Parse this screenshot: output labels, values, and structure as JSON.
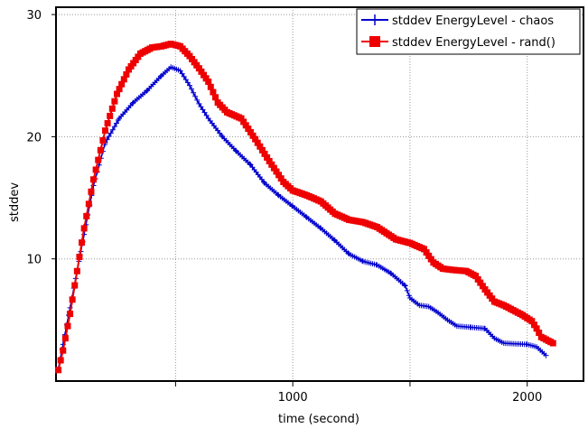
{
  "chart_data": {
    "type": "line",
    "title": "",
    "xlabel": "time (second)",
    "ylabel": "stddev",
    "xlim": [
      -10,
      2240
    ],
    "ylim": [
      0,
      30.6
    ],
    "xticks": [
      500,
      1000,
      1500,
      2000
    ],
    "xtick_labels": [
      "",
      "1000",
      "",
      "2000"
    ],
    "yticks": [
      10,
      20,
      30
    ],
    "ytick_labels": [
      "10",
      "20",
      "30"
    ],
    "grid": true,
    "legend_position": "top-right",
    "series": [
      {
        "name": "stddev EnergyLevel - chaos",
        "color": "#0000cc",
        "marker": "plus",
        "points": [
          [
            0,
            1
          ],
          [
            20,
            3
          ],
          [
            50,
            6
          ],
          [
            80,
            9
          ],
          [
            110,
            12
          ],
          [
            150,
            16
          ],
          [
            200,
            19.5
          ],
          [
            260,
            21.5
          ],
          [
            320,
            22.8
          ],
          [
            380,
            23.8
          ],
          [
            440,
            25
          ],
          [
            480,
            25.7
          ],
          [
            520,
            25.4
          ],
          [
            560,
            24.2
          ],
          [
            600,
            22.7
          ],
          [
            640,
            21.5
          ],
          [
            700,
            20
          ],
          [
            760,
            18.8
          ],
          [
            820,
            17.7
          ],
          [
            880,
            16.2
          ],
          [
            940,
            15.2
          ],
          [
            1000,
            14.3
          ],
          [
            1060,
            13.4
          ],
          [
            1120,
            12.5
          ],
          [
            1180,
            11.5
          ],
          [
            1240,
            10.4
          ],
          [
            1300,
            9.8
          ],
          [
            1360,
            9.5
          ],
          [
            1420,
            8.8
          ],
          [
            1480,
            7.8
          ],
          [
            1500,
            6.8
          ],
          [
            1540,
            6.2
          ],
          [
            1580,
            6.1
          ],
          [
            1620,
            5.6
          ],
          [
            1660,
            5
          ],
          [
            1700,
            4.5
          ],
          [
            1760,
            4.4
          ],
          [
            1820,
            4.3
          ],
          [
            1860,
            3.5
          ],
          [
            1900,
            3.1
          ],
          [
            2000,
            3
          ],
          [
            2040,
            2.8
          ],
          [
            2080,
            2.1
          ]
        ]
      },
      {
        "name": "stddev EnergyLevel - rand()",
        "color": "#ee0000",
        "marker": "square",
        "points": [
          [
            0,
            0.9
          ],
          [
            20,
            2.5
          ],
          [
            50,
            5.5
          ],
          [
            80,
            9
          ],
          [
            110,
            12.5
          ],
          [
            150,
            16.5
          ],
          [
            200,
            20.5
          ],
          [
            250,
            23.5
          ],
          [
            300,
            25.5
          ],
          [
            350,
            26.8
          ],
          [
            400,
            27.3
          ],
          [
            440,
            27.4
          ],
          [
            480,
            27.6
          ],
          [
            520,
            27.4
          ],
          [
            560,
            26.6
          ],
          [
            600,
            25.6
          ],
          [
            640,
            24.5
          ],
          [
            680,
            22.8
          ],
          [
            720,
            22
          ],
          [
            780,
            21.5
          ],
          [
            840,
            19.8
          ],
          [
            900,
            18
          ],
          [
            960,
            16.3
          ],
          [
            1000,
            15.6
          ],
          [
            1060,
            15.2
          ],
          [
            1120,
            14.7
          ],
          [
            1180,
            13.7
          ],
          [
            1240,
            13.2
          ],
          [
            1300,
            13
          ],
          [
            1360,
            12.6
          ],
          [
            1400,
            12.1
          ],
          [
            1440,
            11.6
          ],
          [
            1500,
            11.3
          ],
          [
            1560,
            10.8
          ],
          [
            1600,
            9.7
          ],
          [
            1640,
            9.2
          ],
          [
            1680,
            9.1
          ],
          [
            1740,
            9
          ],
          [
            1780,
            8.6
          ],
          [
            1820,
            7.5
          ],
          [
            1860,
            6.5
          ],
          [
            1900,
            6.2
          ],
          [
            1940,
            5.8
          ],
          [
            1980,
            5.4
          ],
          [
            2020,
            4.9
          ],
          [
            2040,
            4.3
          ],
          [
            2060,
            3.6
          ],
          [
            2100,
            3.2
          ],
          [
            2110,
            3.1
          ]
        ]
      }
    ]
  }
}
